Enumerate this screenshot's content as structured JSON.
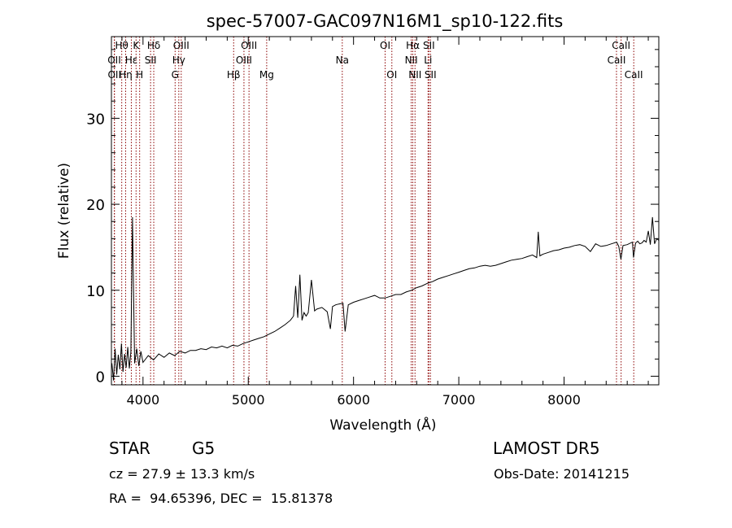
{
  "chart_data": {
    "type": "line",
    "title": "spec-57007-GAC097N16M1_sp10-122.fits",
    "xlabel": "Wavelength (Å)",
    "ylabel": "Flux (relative)",
    "xlim": [
      3700,
      8900
    ],
    "ylim": [
      -1.0,
      39.5
    ],
    "x_ticks": [
      4000,
      5000,
      6000,
      7000,
      8000
    ],
    "y_ticks": [
      0,
      10,
      20,
      30
    ],
    "grid": false,
    "colors": {
      "spectrum": "#000000",
      "lines": "#8b0000",
      "axes": "#000000"
    },
    "series": [
      {
        "x": [
          3705,
          3720,
          3735,
          3750,
          3765,
          3780,
          3795,
          3810,
          3825,
          3840,
          3855,
          3870,
          3885,
          3900,
          3920,
          3940,
          3960,
          3980,
          4000,
          4050,
          4100,
          4150,
          4200,
          4250,
          4300,
          4350,
          4400,
          4450,
          4500,
          4550,
          4600,
          4650,
          4700,
          4750,
          4800,
          4850,
          4900,
          4950,
          5000,
          5050,
          5100,
          5150,
          5200,
          5250,
          5300,
          5350,
          5400,
          5430,
          5450,
          5470,
          5490,
          5510,
          5530,
          5550,
          5570,
          5600,
          5630,
          5650,
          5700,
          5750,
          5780,
          5800,
          5830,
          5860,
          5900,
          5920,
          5950,
          6000,
          6050,
          6100,
          6150,
          6200,
          6250,
          6300,
          6350,
          6400,
          6450,
          6500,
          6550,
          6600,
          6650,
          6700,
          6750,
          6800,
          6850,
          6900,
          6950,
          7000,
          7050,
          7100,
          7150,
          7200,
          7250,
          7300,
          7350,
          7400,
          7450,
          7500,
          7550,
          7600,
          7650,
          7700,
          7740,
          7755,
          7770,
          7800,
          7850,
          7900,
          7950,
          8000,
          8050,
          8100,
          8150,
          8200,
          8250,
          8300,
          8350,
          8400,
          8450,
          8500,
          8520,
          8540,
          8560,
          8600,
          8650,
          8660,
          8680,
          8700,
          8720,
          8740,
          8760,
          8780,
          8800,
          8820,
          8840,
          8860,
          8880,
          8900
        ],
        "y": [
          1.5,
          -0.5,
          3.2,
          0.2,
          2.5,
          0.8,
          3.8,
          0.5,
          2.6,
          1.0,
          3.4,
          0.9,
          2.8,
          18.5,
          1.5,
          3.2,
          1.2,
          2.9,
          1.6,
          2.4,
          1.9,
          2.6,
          2.2,
          2.7,
          2.4,
          2.9,
          2.7,
          3.0,
          3.0,
          3.2,
          3.1,
          3.4,
          3.3,
          3.5,
          3.3,
          3.6,
          3.5,
          3.8,
          4.0,
          4.2,
          4.4,
          4.6,
          4.9,
          5.2,
          5.6,
          6.0,
          6.5,
          7.0,
          10.5,
          6.8,
          11.8,
          6.5,
          7.4,
          7.0,
          7.4,
          11.2,
          7.6,
          7.8,
          8.0,
          7.5,
          5.5,
          8.1,
          8.3,
          8.4,
          8.5,
          5.2,
          8.3,
          8.6,
          8.8,
          9.0,
          9.2,
          9.4,
          9.1,
          9.1,
          9.3,
          9.5,
          9.5,
          9.8,
          10.0,
          10.3,
          10.5,
          10.8,
          11.0,
          11.3,
          11.5,
          11.7,
          11.9,
          12.1,
          12.3,
          12.5,
          12.6,
          12.8,
          12.9,
          12.8,
          12.9,
          13.1,
          13.3,
          13.5,
          13.6,
          13.7,
          13.9,
          14.1,
          13.8,
          16.8,
          14.0,
          14.2,
          14.4,
          14.6,
          14.7,
          14.9,
          15.0,
          15.2,
          15.3,
          15.1,
          14.5,
          15.4,
          15.1,
          15.2,
          15.4,
          15.6,
          15.1,
          13.6,
          15.2,
          15.3,
          15.6,
          13.8,
          15.5,
          15.7,
          15.4,
          15.5,
          15.8,
          15.6,
          16.9,
          15.3,
          18.5,
          15.4,
          16.0,
          15.8
        ]
      }
    ],
    "spectral_lines": [
      {
        "label": "Hθ",
        "x": 3798,
        "row": 1
      },
      {
        "label": "K",
        "x": 3934,
        "row": 1
      },
      {
        "label": "Hδ",
        "x": 4102,
        "row": 1
      },
      {
        "label": "OIII",
        "x": 4363,
        "row": 1
      },
      {
        "label": "OIII",
        "x": 5007,
        "row": 1
      },
      {
        "label": "OI",
        "x": 6300,
        "row": 1
      },
      {
        "label": "Hα",
        "x": 6563,
        "row": 1
      },
      {
        "label": "SII",
        "x": 6716,
        "row": 1
      },
      {
        "label": "CaII",
        "x": 8542,
        "row": 1
      },
      {
        "label": "OII",
        "x": 3727,
        "row": 2
      },
      {
        "label": "Hε",
        "x": 3889,
        "row": 2
      },
      {
        "label": "SII",
        "x": 4072,
        "row": 2
      },
      {
        "label": "Hγ",
        "x": 4340,
        "row": 2
      },
      {
        "label": "OIII",
        "x": 4959,
        "row": 2
      },
      {
        "label": "Na",
        "x": 5893,
        "row": 2
      },
      {
        "label": "NII",
        "x": 6548,
        "row": 2
      },
      {
        "label": "Li",
        "x": 6708,
        "row": 2
      },
      {
        "label": "CaII",
        "x": 8498,
        "row": 2
      },
      {
        "label": "OII",
        "x": 3729,
        "row": 3
      },
      {
        "label": "Hη",
        "x": 3835,
        "row": 3
      },
      {
        "label": "H",
        "x": 3968,
        "row": 3
      },
      {
        "label": "G",
        "x": 4305,
        "row": 3
      },
      {
        "label": "Hβ",
        "x": 4861,
        "row": 3
      },
      {
        "label": "Mg",
        "x": 5175,
        "row": 3
      },
      {
        "label": "OI",
        "x": 6364,
        "row": 3
      },
      {
        "label": "NII",
        "x": 6584,
        "row": 3
      },
      {
        "label": "SII",
        "x": 6731,
        "row": 3
      },
      {
        "label": "CaII",
        "x": 8662,
        "row": 3
      }
    ]
  },
  "info": {
    "class": "STAR",
    "subclass": "G5",
    "survey": "LAMOST DR5",
    "cz": "cz = 27.9 ± 13.3 km/s",
    "obs_date": "Obs-Date: 20141215",
    "coords": "RA =  94.65396, DEC =  15.81378"
  }
}
